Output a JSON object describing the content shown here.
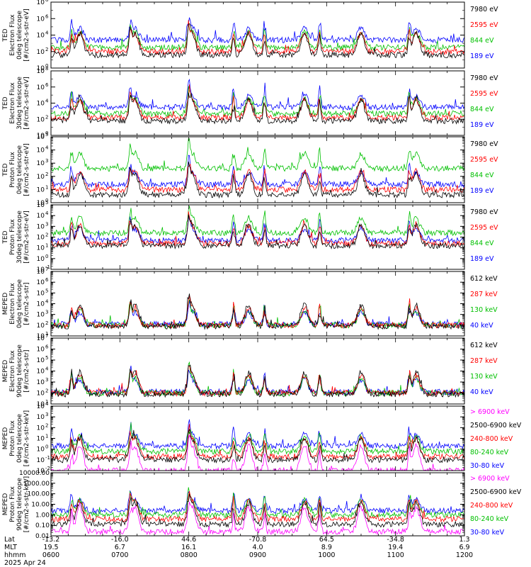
{
  "chart_data": [
    {
      "type": "line",
      "panel": "ted-electron-0deg",
      "ylabel": [
        "TED",
        "Electron Flux",
        "0deg telescope",
        "[#/cm2-s-str-eV]"
      ],
      "yscale": "log",
      "ylim_exp": [
        0,
        8
      ],
      "tick_exps": [
        0,
        2,
        4,
        6,
        8
      ],
      "tick_base": "10",
      "series": [
        {
          "name": "7980 eV",
          "color": "#000000",
          "base_exp": 1.6
        },
        {
          "name": "2595 eV",
          "color": "#ff0000",
          "base_exp": 2.0
        },
        {
          "name": "844 eV",
          "color": "#00c000",
          "base_exp": 2.5
        },
        {
          "name": "189 eV",
          "color": "#0000ff",
          "base_exp": 3.4
        }
      ]
    },
    {
      "type": "line",
      "panel": "ted-electron-30deg",
      "ylabel": [
        "TED",
        "Electron Flux",
        "30deg telescope",
        "[#/cm2-s-str-eV]"
      ],
      "yscale": "log",
      "ylim_exp": [
        0,
        8
      ],
      "tick_exps": [
        0,
        2,
        4,
        6,
        8
      ],
      "tick_base": "10",
      "series": [
        {
          "name": "7980 eV",
          "color": "#000000",
          "base_exp": 1.8
        },
        {
          "name": "2595 eV",
          "color": "#ff0000",
          "base_exp": 2.2
        },
        {
          "name": "844 eV",
          "color": "#00c000",
          "base_exp": 2.7
        },
        {
          "name": "189 eV",
          "color": "#0000ff",
          "base_exp": 3.5
        }
      ]
    },
    {
      "type": "line",
      "panel": "ted-proton-0deg",
      "ylabel": [
        "TED",
        "Proton Flux",
        "0deg telescope",
        "[#/cm2-s-str-eV]"
      ],
      "yscale": "log",
      "ylim_exp": [
        0,
        5
      ],
      "tick_exps": [
        0,
        1,
        2,
        3,
        4,
        5
      ],
      "tick_base": "10",
      "series": [
        {
          "name": "7980 eV",
          "color": "#000000",
          "base_exp": 0.6
        },
        {
          "name": "2595 eV",
          "color": "#ff0000",
          "base_exp": 1.0
        },
        {
          "name": "844 eV",
          "color": "#00c000",
          "base_exp": 2.6
        },
        {
          "name": "189 eV",
          "color": "#0000ff",
          "base_exp": 1.4
        }
      ]
    },
    {
      "type": "line",
      "panel": "ted-proton-30deg",
      "ylabel": [
        "TED",
        "Proton Flux",
        "30deg telescope",
        "[#/cm2-s-str-eV]"
      ],
      "yscale": "log",
      "ylim_exp": [
        -1,
        5
      ],
      "tick_exps": [
        -1,
        0,
        1,
        2,
        3,
        4,
        5
      ],
      "tick_base": "10",
      "series": [
        {
          "name": "7980 eV",
          "color": "#000000",
          "base_exp": 1.2
        },
        {
          "name": "2595 eV",
          "color": "#ff0000",
          "base_exp": 1.4
        },
        {
          "name": "844 eV",
          "color": "#00c000",
          "base_exp": 2.4
        },
        {
          "name": "189 eV",
          "color": "#0000ff",
          "base_exp": 1.7
        }
      ]
    },
    {
      "type": "line",
      "panel": "meped-electron-0deg",
      "ylabel": [
        "MEPED",
        "Electron Flux",
        "0deg telescope",
        "[#/cm2-s-str]"
      ],
      "yscale": "log",
      "ylim_exp": [
        1,
        7
      ],
      "tick_exps": [
        1,
        2,
        3,
        4,
        5,
        6,
        7
      ],
      "tick_base": "10",
      "series": [
        {
          "name": "612 keV",
          "color": "#000000",
          "base_exp": 1.9
        },
        {
          "name": "287 keV",
          "color": "#ff0000",
          "base_exp": 2.0
        },
        {
          "name": "130 keV",
          "color": "#00c000",
          "base_exp": 2.0
        },
        {
          "name": "40 keV",
          "color": "#0000ff",
          "base_exp": 2.1
        }
      ]
    },
    {
      "type": "line",
      "panel": "meped-electron-90deg",
      "ylabel": [
        "MEPED",
        "Electron Flux",
        "90deg telescope",
        "[#/cm2-s-str]"
      ],
      "yscale": "log",
      "ylim_exp": [
        1,
        7
      ],
      "tick_exps": [
        1,
        2,
        3,
        4,
        5,
        6,
        7
      ],
      "tick_base": "10",
      "series": [
        {
          "name": "612 keV",
          "color": "#000000",
          "base_exp": 1.9
        },
        {
          "name": "287 keV",
          "color": "#ff0000",
          "base_exp": 2.0
        },
        {
          "name": "130 keV",
          "color": "#00c000",
          "base_exp": 2.0
        },
        {
          "name": "40 keV",
          "color": "#0000ff",
          "base_exp": 2.1
        }
      ]
    },
    {
      "type": "line",
      "panel": "meped-proton-0deg",
      "ylabel": [
        "MEPED",
        "Proton Flux",
        "0deg telescope",
        "[#/cm2-s-str-keV]"
      ],
      "yscale": "log",
      "ylim_exp": [
        -2,
        4
      ],
      "tick_exps": [
        -2,
        -1,
        0,
        1,
        2,
        3,
        4
      ],
      "tick_base": "10",
      "series": [
        {
          "name": "> 6900 keV",
          "color": "#ff00ff",
          "base_exp": -2.0
        },
        {
          "name": "2500-6900 keV",
          "color": "#000000",
          "base_exp": -1.0
        },
        {
          "name": "240-800 keV",
          "color": "#ff0000",
          "base_exp": -0.7
        },
        {
          "name": "80-240 keV",
          "color": "#00c000",
          "base_exp": -0.2
        },
        {
          "name": "30-80 keV",
          "color": "#0000ff",
          "base_exp": 0.3
        }
      ]
    },
    {
      "type": "line",
      "panel": "meped-proton-90deg",
      "ylabel": [
        "MEPED",
        "Proton Flux",
        "90deg telescope",
        "[#/cm2-s-str-keV]"
      ],
      "yscale": "log",
      "ylim_exp": [
        -2,
        4
      ],
      "tick_exps": [
        -2,
        -1,
        0,
        1,
        2,
        3,
        4
      ],
      "tick_labels": [
        "0.01",
        "0.10",
        "1.00",
        "10.00",
        "100.00",
        "1000.00",
        "10000.00"
      ],
      "series": [
        {
          "name": "> 6900 keV",
          "color": "#ff00ff",
          "base_exp": -1.6
        },
        {
          "name": "2500-6900 keV",
          "color": "#000000",
          "base_exp": -0.9
        },
        {
          "name": "240-800 keV",
          "color": "#ff0000",
          "base_exp": -0.4
        },
        {
          "name": "80-240 keV",
          "color": "#00c000",
          "base_exp": 0.0
        },
        {
          "name": "30-80 keV",
          "color": "#0000ff",
          "base_exp": 0.4
        }
      ]
    }
  ],
  "time_axis": {
    "row_labels": [
      "Lat",
      "MLT",
      "hhmm"
    ],
    "ticks": [
      {
        "lat": "-13.2",
        "mlt": "19.5",
        "hhmm": "0600"
      },
      {
        "lat": "-16.0",
        "mlt": "6.7",
        "hhmm": "0700"
      },
      {
        "lat": "44.6",
        "mlt": "16.1",
        "hhmm": "0800"
      },
      {
        "lat": "-70.8",
        "mlt": "4.0",
        "hhmm": "0900"
      },
      {
        "lat": "64.5",
        "mlt": "8.9",
        "hhmm": "1000"
      },
      {
        "lat": "-34.8",
        "mlt": "19.4",
        "hhmm": "1100"
      },
      {
        "lat": "1.3",
        "mlt": "6.9",
        "hhmm": "1200"
      }
    ],
    "date": "2025 Apr 24"
  },
  "orbit_peaks_hours": [
    0.42,
    1.22,
    2.05,
    2.87,
    3.68,
    4.5,
    5.3
  ],
  "spike_hours": [
    0.3,
    1.15,
    2.0,
    2.65,
    3.1,
    3.9,
    5.2
  ]
}
